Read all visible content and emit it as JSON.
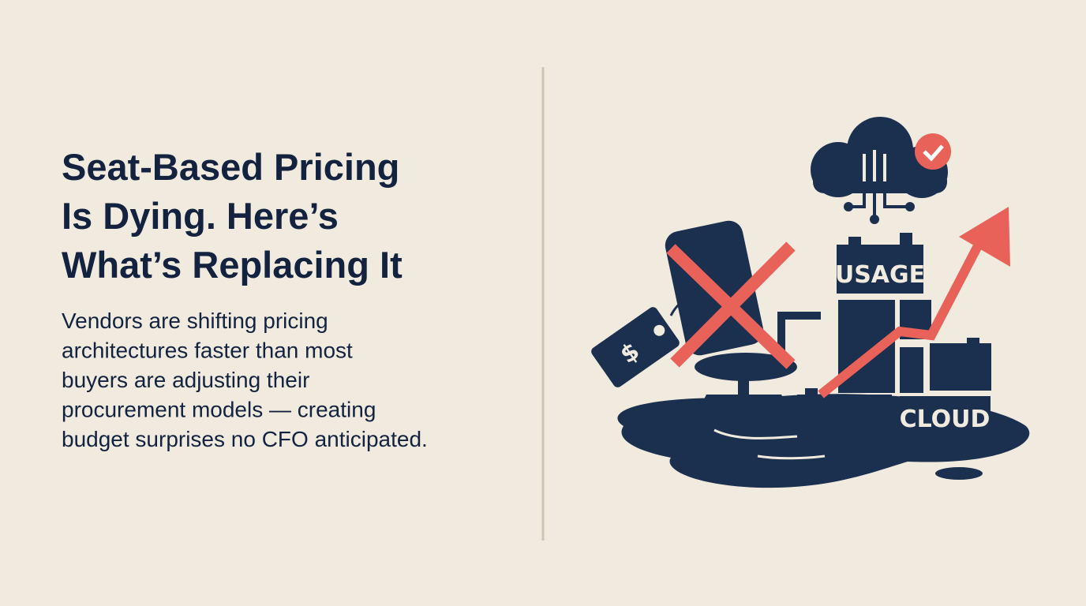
{
  "header": {
    "title_lines": [
      "Seat-Based Pricing",
      "Is Dying. Here’s",
      "What’s Replacing It"
    ],
    "subtitle_lines": [
      "Vendors are shifting pricing",
      "architectures faster than most",
      "buyers are adjusting their",
      "procurement models — creating",
      "budget surprises no CFO anticipated."
    ]
  },
  "illustration": {
    "block_top_label": "USAGE",
    "block_bottom_label": "CLOUD",
    "tag_label": "$"
  }
}
